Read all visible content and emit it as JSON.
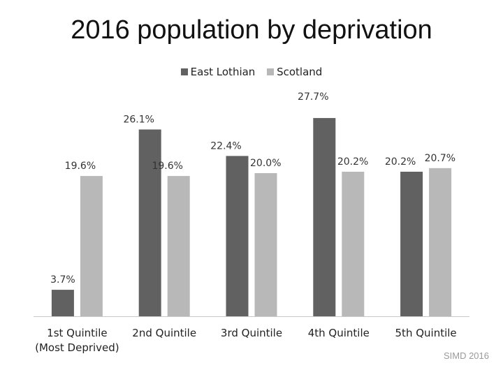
{
  "chart_data": {
    "type": "bar",
    "title": "2016 population by deprivation",
    "categories": [
      "1st Quintile",
      "2nd Quintile",
      "3rd Quintile",
      "4th Quintile",
      "5th Quintile"
    ],
    "category_sublabels": [
      "(Most Deprived)",
      "",
      "",
      "",
      ""
    ],
    "series": [
      {
        "name": "East Lothian",
        "color": "#616161",
        "values": [
          3.7,
          26.1,
          22.4,
          27.7,
          20.2
        ],
        "labels": [
          "3.7%",
          "26.1%",
          "22.4%",
          "27.7%",
          "20.2%"
        ]
      },
      {
        "name": "Scotland",
        "color": "#b8b8b8",
        "values": [
          19.6,
          19.6,
          20.0,
          20.2,
          20.7
        ],
        "labels": [
          "19.6%",
          "19.6%",
          "20.0%",
          "20.2%",
          "20.7%"
        ]
      }
    ],
    "xlabel": "",
    "ylabel": "",
    "ylim": [
      0,
      30
    ],
    "legend_position": "top-center",
    "grid": false
  },
  "footer": {
    "source": "SIMD 2016"
  }
}
